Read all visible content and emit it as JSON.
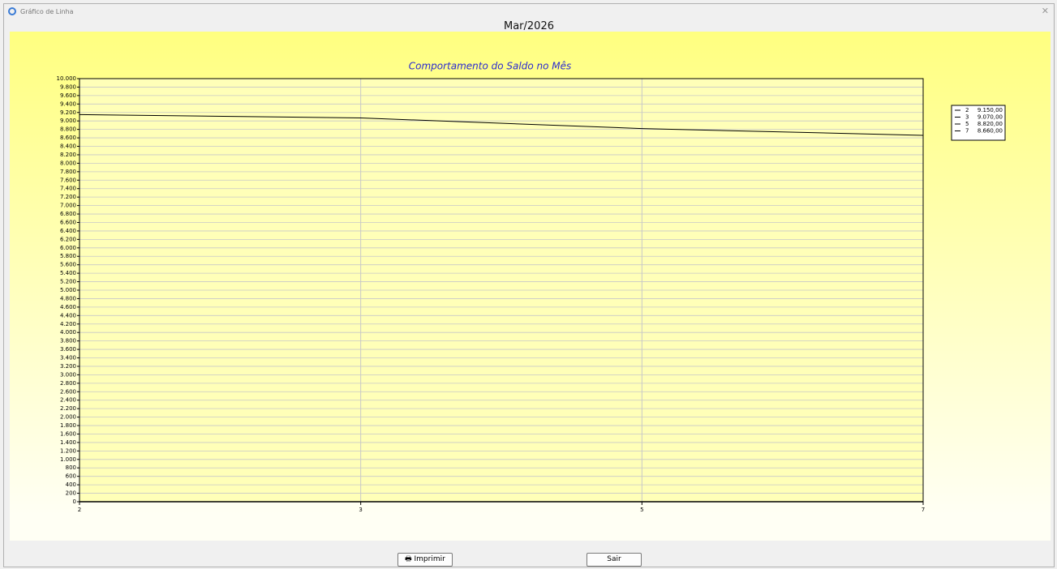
{
  "window": {
    "title": "Gráfico de Linha"
  },
  "header": "Mar/2026",
  "chart_data": {
    "type": "line",
    "title": "Comportamento do Saldo no Mês",
    "categories": [
      "2",
      "3",
      "5",
      "7"
    ],
    "values": [
      9150,
      9070,
      8820,
      8660
    ],
    "value_labels": [
      "9.150,00",
      "9.070,00",
      "8.820,00",
      "8.660,00"
    ],
    "color": "#000000",
    "ylim": [
      0,
      10000
    ],
    "yticks": [
      0,
      200,
      400,
      600,
      800,
      {
        "value": 1000,
        "label": "1.000"
      },
      {
        "value": 1200,
        "label": "1.200"
      },
      {
        "value": 1400,
        "label": "1.400"
      },
      {
        "value": 1600,
        "label": "1.600"
      },
      {
        "value": 1800,
        "label": "1.800"
      },
      {
        "value": 2000,
        "label": "2.000"
      },
      {
        "value": 2200,
        "label": "2.200"
      },
      {
        "value": 2400,
        "label": "2.400"
      },
      {
        "value": 2600,
        "label": "2.600"
      },
      {
        "value": 2800,
        "label": "2.800"
      },
      {
        "value": 3000,
        "label": "3.000"
      },
      {
        "value": 3200,
        "label": "3.200"
      },
      {
        "value": 3400,
        "label": "3.400"
      },
      {
        "value": 3600,
        "label": "3.600"
      },
      {
        "value": 3800,
        "label": "3.800"
      },
      {
        "value": 4000,
        "label": "4.000"
      },
      {
        "value": 4200,
        "label": "4.200"
      },
      {
        "value": 4400,
        "label": "4.400"
      },
      {
        "value": 4600,
        "label": "4.600"
      },
      {
        "value": 4800,
        "label": "4.800"
      },
      {
        "value": 5000,
        "label": "5.000"
      },
      {
        "value": 5200,
        "label": "5.200"
      },
      {
        "value": 5400,
        "label": "5.400"
      },
      {
        "value": 5600,
        "label": "5.600"
      },
      {
        "value": 5800,
        "label": "5.800"
      },
      {
        "value": 6000,
        "label": "6.000"
      },
      {
        "value": 6200,
        "label": "6.200"
      },
      {
        "value": 6400,
        "label": "6.400"
      },
      {
        "value": 6600,
        "label": "6.600"
      },
      {
        "value": 6800,
        "label": "6.800"
      },
      {
        "value": 7000,
        "label": "7.000"
      },
      {
        "value": 7200,
        "label": "7.200"
      },
      {
        "value": 7400,
        "label": "7.400"
      },
      {
        "value": 7600,
        "label": "7.600"
      },
      {
        "value": 7800,
        "label": "7.800"
      },
      {
        "value": 8000,
        "label": "8.000"
      },
      {
        "value": 8200,
        "label": "8.200"
      },
      {
        "value": 8400,
        "label": "8.400"
      },
      {
        "value": 8600,
        "label": "8.600"
      },
      {
        "value": 8800,
        "label": "8.800"
      },
      {
        "value": 9000,
        "label": "9.000"
      },
      {
        "value": 9200,
        "label": "9.200"
      },
      {
        "value": 9400,
        "label": "9.400"
      },
      {
        "value": 9600,
        "label": "9.600"
      },
      {
        "value": 9800,
        "label": "9.800"
      },
      {
        "value": 10000,
        "label": "10.000"
      }
    ],
    "grid": true
  },
  "buttons": [
    "Imprimir",
    "Sair"
  ]
}
